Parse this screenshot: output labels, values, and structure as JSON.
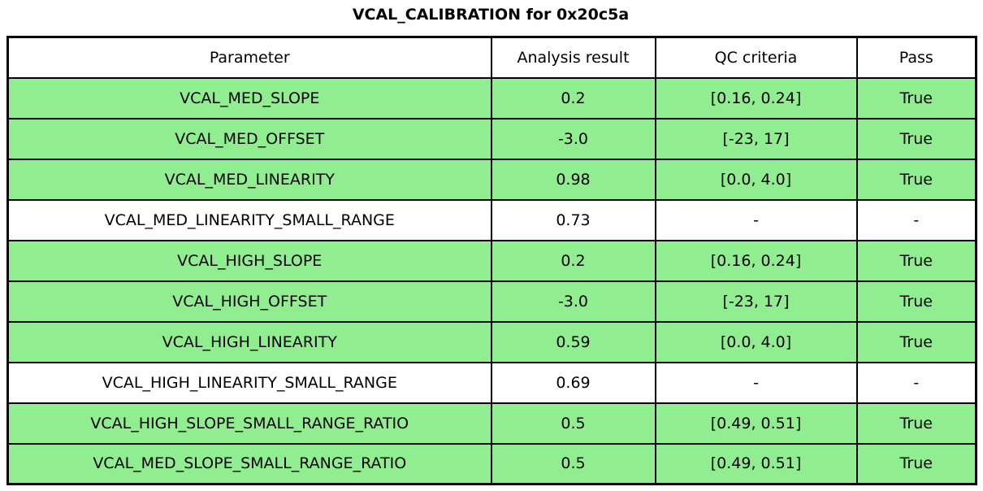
{
  "title": "VCAL_CALIBRATION for 0x20c5a",
  "colors": {
    "highlight_row": "#90ee90",
    "plain_row": "#ffffff",
    "border": "#000000",
    "text": "#000000"
  },
  "chart_data": {
    "type": "table",
    "title": "VCAL_CALIBRATION for 0x20c5a",
    "columns": [
      "Parameter",
      "Analysis result",
      "QC criteria",
      "Pass"
    ],
    "rows": [
      {
        "cells": [
          "VCAL_MED_SLOPE",
          "0.2",
          "[0.16, 0.24]",
          "True"
        ],
        "highlighted": true
      },
      {
        "cells": [
          "VCAL_MED_OFFSET",
          "-3.0",
          "[-23, 17]",
          "True"
        ],
        "highlighted": true
      },
      {
        "cells": [
          "VCAL_MED_LINEARITY",
          "0.98",
          "[0.0, 4.0]",
          "True"
        ],
        "highlighted": true
      },
      {
        "cells": [
          "VCAL_MED_LINEARITY_SMALL_RANGE",
          "0.73",
          "-",
          "-"
        ],
        "highlighted": false
      },
      {
        "cells": [
          "VCAL_HIGH_SLOPE",
          "0.2",
          "[0.16, 0.24]",
          "True"
        ],
        "highlighted": true
      },
      {
        "cells": [
          "VCAL_HIGH_OFFSET",
          "-3.0",
          "[-23, 17]",
          "True"
        ],
        "highlighted": true
      },
      {
        "cells": [
          "VCAL_HIGH_LINEARITY",
          "0.59",
          "[0.0, 4.0]",
          "True"
        ],
        "highlighted": true
      },
      {
        "cells": [
          "VCAL_HIGH_LINEARITY_SMALL_RANGE",
          "0.69",
          "-",
          "-"
        ],
        "highlighted": false
      },
      {
        "cells": [
          "VCAL_HIGH_SLOPE_SMALL_RANGE_RATIO",
          "0.5",
          "[0.49, 0.51]",
          "True"
        ],
        "highlighted": true
      },
      {
        "cells": [
          "VCAL_MED_SLOPE_SMALL_RANGE_RATIO",
          "0.5",
          "[0.49, 0.51]",
          "True"
        ],
        "highlighted": true
      }
    ],
    "layout": {
      "grid": true,
      "legend": "none",
      "highlight_meaning": "row passes QC criteria"
    }
  }
}
